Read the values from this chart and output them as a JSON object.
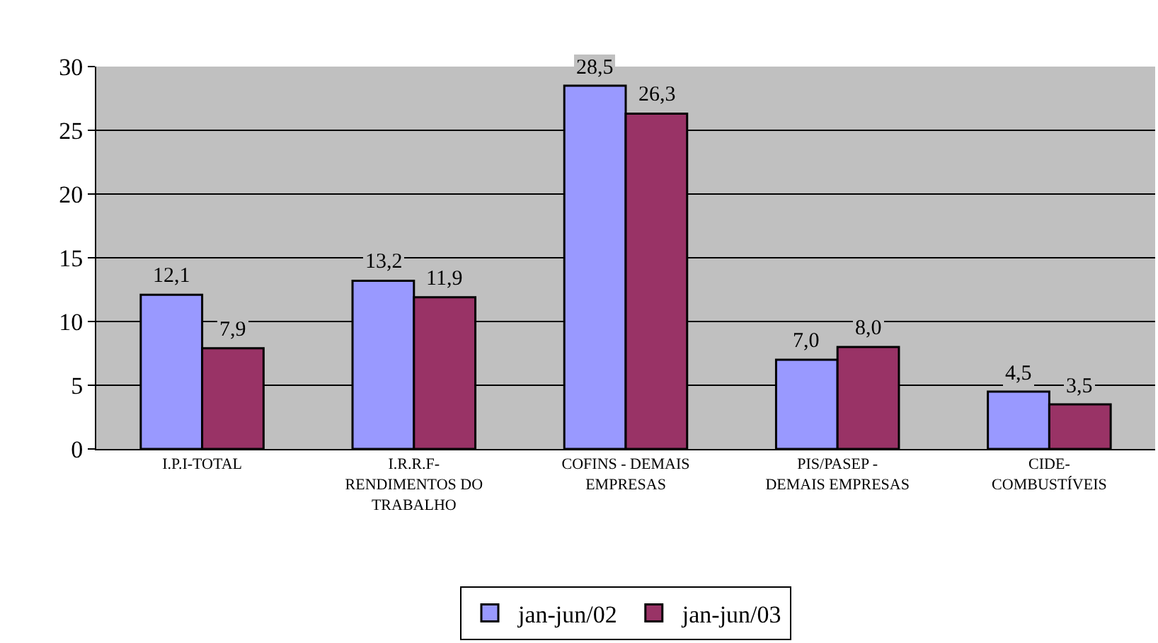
{
  "chart_data": {
    "type": "bar",
    "categories": [
      "I.P.I-TOTAL",
      "I.R.R.F-RENDIMENTOS DO TRABALHO",
      "COFINS - DEMAIS EMPRESAS",
      "PIS/PASEP - DEMAIS EMPRESAS",
      "CIDE-COMBUSTÍVEIS"
    ],
    "series": [
      {
        "name": "jan-jun/02",
        "color": "#9999ff",
        "values": [
          12.1,
          13.2,
          28.5,
          7.0,
          4.5
        ],
        "value_labels": [
          "12,1",
          "13,2",
          "28,5",
          "7,0",
          "4,5"
        ]
      },
      {
        "name": "jan-jun/03",
        "color": "#993366",
        "values": [
          7.9,
          11.9,
          26.3,
          8.0,
          3.5
        ],
        "value_labels": [
          "7,9",
          "11,9",
          "26,3",
          "8,0",
          "3,5"
        ]
      }
    ],
    "ylim": [
      0,
      30
    ],
    "yticks": [
      0,
      5,
      10,
      15,
      20,
      25,
      30
    ],
    "grid": "y",
    "legend": "bottom"
  }
}
